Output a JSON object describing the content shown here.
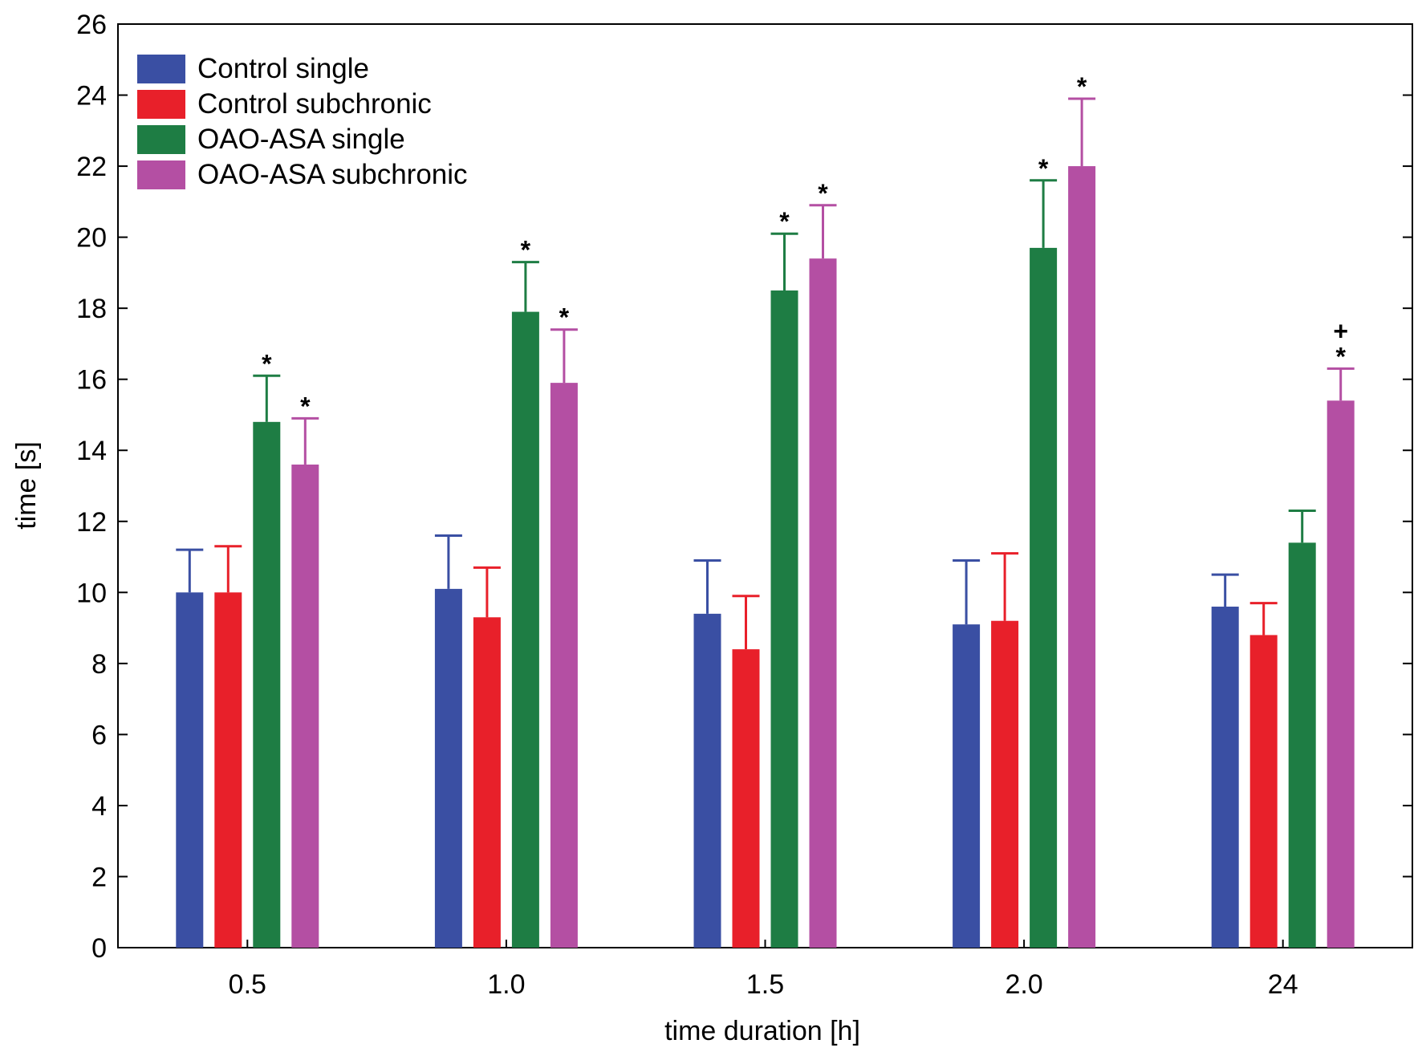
{
  "chart_data": {
    "type": "bar",
    "title": "",
    "xlabel": "time duration [h]",
    "ylabel": "time [s]",
    "ylim": [
      0,
      26
    ],
    "yticks": [
      "0",
      "2",
      "4",
      "6",
      "8",
      "10",
      "12",
      "14",
      "16",
      "18",
      "20",
      "22",
      "24",
      "26"
    ],
    "categories": [
      "0.5",
      "1.0",
      "1.5",
      "2.0",
      "24"
    ],
    "legend_position": "top-left",
    "grid": false,
    "series": [
      {
        "name": "Control single",
        "color": "#3a4fa3",
        "values": [
          10.0,
          10.1,
          9.4,
          9.1,
          9.6
        ],
        "errors": [
          1.2,
          1.5,
          1.5,
          1.8,
          0.9
        ],
        "marks": [
          "",
          "",
          "",
          "",
          ""
        ]
      },
      {
        "name": "Control subchronic",
        "color": "#e8202a",
        "values": [
          10.0,
          9.3,
          8.4,
          9.2,
          8.8
        ],
        "errors": [
          1.3,
          1.4,
          1.5,
          1.9,
          0.9
        ],
        "marks": [
          "",
          "",
          "",
          "",
          ""
        ]
      },
      {
        "name": "OAO-ASA single",
        "color": "#1e7d44",
        "values": [
          14.8,
          17.9,
          18.5,
          19.7,
          11.4
        ],
        "errors": [
          1.3,
          1.4,
          1.6,
          1.9,
          0.9
        ],
        "marks": [
          "*",
          "*",
          "*",
          "*",
          ""
        ]
      },
      {
        "name": "OAO-ASA subchronic",
        "color": "#b44fa3",
        "values": [
          13.6,
          15.9,
          19.4,
          22.0,
          15.4
        ],
        "errors": [
          1.3,
          1.5,
          1.5,
          1.9,
          0.9
        ],
        "marks": [
          "*",
          "*",
          "*",
          "*",
          "*"
        ]
      }
    ],
    "extra_marks": [
      {
        "series": 3,
        "category": 4,
        "text": "+"
      }
    ]
  }
}
